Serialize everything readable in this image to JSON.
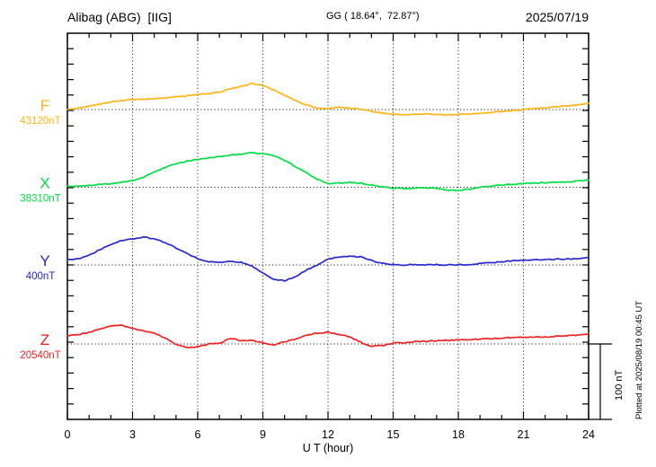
{
  "chart_data": {
    "type": "line",
    "title": "Alibag (ABG)  [IIG]",
    "coords": "GG ( 18.64°,  72.87°)",
    "date": "2025/07/19",
    "xlabel": "U T (hour)",
    "xlim": [
      0,
      24
    ],
    "x_ticks": [
      0,
      3,
      6,
      9,
      12,
      15,
      18,
      21,
      24
    ],
    "x_minor_step_hours": 1,
    "sample_step_hours": 0.5,
    "grid": "dotted vertical every 3 h, dotted horizontal baseline per component",
    "scale_bar": {
      "label": "100 nT",
      "nT": 100
    },
    "plotted_at": "Plotted at 2025/08/19 00:45 UT",
    "series": [
      {
        "name": "F",
        "baseline_label": "43120nT",
        "color": "#ffb414",
        "offsets_nT": [
          0,
          2.4,
          4.8,
          7.1,
          10.1,
          11.9,
          13.1,
          13.7,
          14.3,
          15.5,
          16.7,
          17.9,
          20.2,
          21.4,
          23.2,
          27.4,
          31,
          34.5,
          32.1,
          26.2,
          19,
          11.9,
          6,
          1.8,
          1.2,
          3,
          2.4,
          0.6,
          -2.4,
          -4.8,
          -6.5,
          -7.1,
          -6.5,
          -6,
          -6.5,
          -7.1,
          -6.5,
          -6,
          -4.8,
          -3.6,
          -2.4,
          -1.2,
          0,
          1.2,
          2.4,
          3.6,
          4.8,
          6,
          8.3
        ]
      },
      {
        "name": "X",
        "baseline_label": "38310nT",
        "color": "#00dd44",
        "offsets_nT": [
          1.2,
          1.8,
          2.4,
          3.6,
          4.8,
          6.5,
          8.9,
          13.1,
          20.2,
          26.2,
          31,
          34.5,
          36.9,
          38.7,
          40.5,
          42.3,
          44,
          45.8,
          44.6,
          41.7,
          35.7,
          27.4,
          19,
          10.7,
          4.8,
          5.4,
          6.5,
          5.4,
          3,
          0.6,
          -1.2,
          -1.8,
          -1.2,
          -0.6,
          -1.2,
          -3.6,
          -4.2,
          -2.4,
          0,
          1.8,
          3,
          4.2,
          4.8,
          5.4,
          6,
          6.5,
          7.1,
          8.3,
          9.5
        ]
      },
      {
        "name": "Y",
        "baseline_label": "400nT",
        "color": "#2828cf",
        "offsets_nT": [
          7.1,
          7.7,
          13.1,
          20.2,
          27.4,
          32.7,
          34.5,
          36.9,
          34.5,
          29.8,
          22.6,
          15.5,
          8.3,
          4.2,
          3,
          4.8,
          3.6,
          -1.8,
          -10.7,
          -19,
          -20.8,
          -15.5,
          -7.1,
          0,
          7.7,
          10.7,
          11.3,
          10.7,
          6,
          1.8,
          0.6,
          0,
          0.6,
          0,
          0.6,
          0,
          0,
          0.6,
          1.8,
          3,
          4.2,
          5.4,
          6,
          6.5,
          7.1,
          7.7,
          7.7,
          8.3,
          10.1
        ]
      },
      {
        "name": "Z",
        "baseline_label": "20540nT",
        "color": "#ee2222",
        "offsets_nT": [
          10.7,
          12.5,
          15.5,
          20.2,
          23.8,
          24.4,
          20.8,
          17.3,
          14.3,
          8.3,
          -0.6,
          -4.8,
          -3.6,
          0,
          0.6,
          7.7,
          4.2,
          5.4,
          1.2,
          -1.8,
          3,
          6.5,
          11.3,
          14.3,
          15.5,
          12.5,
          9.5,
          2.4,
          -3,
          -2.4,
          1.2,
          1.8,
          3,
          3.6,
          4.2,
          4.8,
          5.4,
          6,
          6.5,
          7.1,
          7.7,
          8.3,
          8.9,
          8.9,
          9.5,
          10.1,
          10.7,
          11.9,
          13.7
        ]
      }
    ]
  }
}
